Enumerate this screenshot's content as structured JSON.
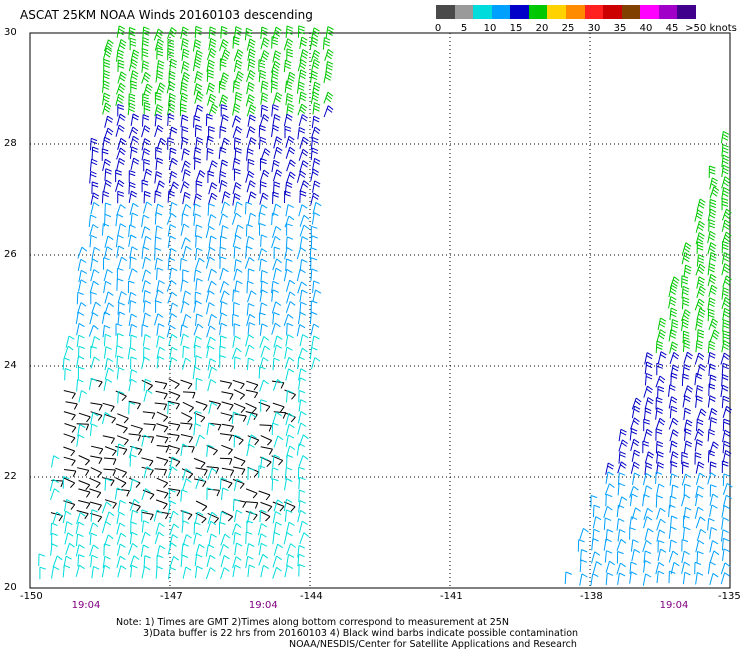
{
  "title": "ASCAT 25KM NOAA Winds 20160103 descending",
  "colorbar": {
    "labels": [
      "0",
      "5",
      "10",
      "15",
      "20",
      "25",
      "30",
      "35",
      "40",
      "45",
      ">50 knots"
    ],
    "colors": [
      "#4a4a4a",
      "#9a9a9a",
      "#00dcdc",
      "#00a0ff",
      "#0000c8",
      "#00c800",
      "#ffd200",
      "#ff8c00",
      "#ff2020",
      "#cc0000",
      "#804000",
      "#ff00ff",
      "#a000c8",
      "#40008c"
    ]
  },
  "chart_data": {
    "type": "scatter",
    "title": "ASCAT 25KM NOAA Winds 20160103 descending",
    "xlim": [
      -150,
      -135
    ],
    "ylim": [
      20,
      30
    ],
    "x_ticks": [
      -150,
      -147,
      -144,
      -141,
      -138,
      -135
    ],
    "x_tick_labels": [
      "-150",
      "-147",
      "-144",
      "-141",
      "-138",
      "-135"
    ],
    "y_ticks": [
      20,
      22,
      24,
      26,
      28,
      30
    ],
    "y_tick_labels": [
      "20",
      "22",
      "24",
      "26",
      "28",
      "30"
    ],
    "grid": true,
    "swaths": [
      {
        "name": "swath-west",
        "time": "19:04",
        "corners_lonlat": [
          [
            -149.9,
            20.0
          ],
          [
            -144.2,
            20.0
          ],
          [
            -143.6,
            30.0
          ],
          [
            -148.4,
            30.0
          ]
        ],
        "speed_bands": [
          {
            "lat_range": [
              28.5,
              30.0
            ],
            "color": "#00c800",
            "speed_knots": "20-25"
          },
          {
            "lat_range": [
              26.8,
              28.5
            ],
            "color": "#0000c8",
            "speed_knots": "15-20"
          },
          {
            "lat_range": [
              24.5,
              26.8
            ],
            "color": "#00a0ff",
            "speed_knots": "10-15"
          },
          {
            "lat_range": [
              20.0,
              24.5
            ],
            "color": "#00dcdc",
            "speed_knots": "5-10"
          }
        ],
        "contaminated_region": {
          "lat_range": [
            21.2,
            23.8
          ],
          "color": "#000000"
        }
      },
      {
        "name": "swath-east",
        "time": "19:04",
        "corners_lonlat": [
          [
            -138.6,
            20.0
          ],
          [
            -135.0,
            20.0
          ],
          [
            -135.0,
            28.5
          ]
        ],
        "speed_bands": [
          {
            "lat_range": [
              24.2,
              28.5
            ],
            "color": "#00c800",
            "speed_knots": "20-25"
          },
          {
            "lat_range": [
              22.0,
              24.2
            ],
            "color": "#0000c8",
            "speed_knots": "15-20"
          },
          {
            "lat_range": [
              20.0,
              22.0
            ],
            "color": "#00a0ff",
            "speed_knots": "10-15"
          }
        ]
      }
    ]
  },
  "time_labels": [
    {
      "text": "19:04",
      "lon": -148.8
    },
    {
      "text": "19:04",
      "lon": -145.0
    },
    {
      "text": "19:04",
      "lon": -136.2
    }
  ],
  "notes": {
    "line1": "Note: 1) Times are GMT 2)Times along bottom correspond to measurement at 25N",
    "line2": "3)Data buffer is 22 hrs from 20160103 4) Black wind barbs indicate possible contamination",
    "line3": "NOAA/NESDIS/Center for Satellite Applications and Research"
  }
}
